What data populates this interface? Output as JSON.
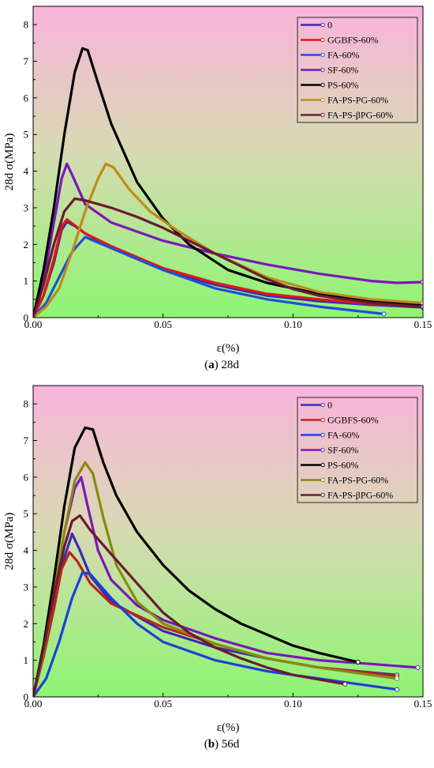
{
  "chart_data": [
    {
      "type": "line",
      "xlabel": "ε(%)",
      "ylabel": "28d σ(MPa)",
      "caption": {
        "label": "a",
        "text": " 28d"
      },
      "xlim": [
        0,
        0.15
      ],
      "ylim": [
        0,
        8.5
      ],
      "x_ticks": [
        "0.00",
        "0.05",
        "0.10",
        "0.15"
      ],
      "y_ticks": [
        "0",
        "1",
        "2",
        "3",
        "4",
        "5",
        "6",
        "7",
        "8"
      ],
      "background": {
        "top": "#f9b4dc",
        "bottom": "#8ef572"
      },
      "legend_position": "top-right",
      "series": [
        {
          "name": "0",
          "color": "#3b2bb0",
          "points": [
            [
              0,
              0
            ],
            [
              0.004,
              0.6
            ],
            [
              0.008,
              1.5
            ],
            [
              0.011,
              2.4
            ],
            [
              0.013,
              2.62
            ],
            [
              0.016,
              2.5
            ],
            [
              0.02,
              2.3
            ],
            [
              0.03,
              1.9
            ],
            [
              0.05,
              1.3
            ],
            [
              0.07,
              0.9
            ],
            [
              0.09,
              0.6
            ],
            [
              0.11,
              0.45
            ],
            [
              0.13,
              0.35
            ],
            [
              0.15,
              0.28
            ]
          ]
        },
        {
          "name": "GGBFS-60%",
          "color": "#e01818",
          "points": [
            [
              0,
              0
            ],
            [
              0.004,
              0.6
            ],
            [
              0.008,
              1.6
            ],
            [
              0.011,
              2.5
            ],
            [
              0.013,
              2.68
            ],
            [
              0.016,
              2.52
            ],
            [
              0.02,
              2.3
            ],
            [
              0.03,
              1.95
            ],
            [
              0.05,
              1.35
            ],
            [
              0.07,
              0.95
            ],
            [
              0.09,
              0.65
            ],
            [
              0.11,
              0.5
            ],
            [
              0.13,
              0.38
            ],
            [
              0.15,
              0.3
            ]
          ]
        },
        {
          "name": "FA-60%",
          "color": "#1f4fd8",
          "points": [
            [
              0,
              0
            ],
            [
              0.005,
              0.4
            ],
            [
              0.01,
              1.1
            ],
            [
              0.015,
              1.8
            ],
            [
              0.02,
              2.2
            ],
            [
              0.025,
              2.05
            ],
            [
              0.035,
              1.75
            ],
            [
              0.05,
              1.3
            ],
            [
              0.07,
              0.8
            ],
            [
              0.09,
              0.5
            ],
            [
              0.11,
              0.3
            ],
            [
              0.135,
              0.1
            ]
          ]
        },
        {
          "name": "SF-60%",
          "color": "#7a18b8",
          "points": [
            [
              0,
              0
            ],
            [
              0.004,
              1.0
            ],
            [
              0.008,
              2.6
            ],
            [
              0.011,
              3.8
            ],
            [
              0.013,
              4.2
            ],
            [
              0.015,
              3.9
            ],
            [
              0.02,
              3.1
            ],
            [
              0.03,
              2.6
            ],
            [
              0.05,
              2.1
            ],
            [
              0.07,
              1.75
            ],
            [
              0.09,
              1.45
            ],
            [
              0.11,
              1.2
            ],
            [
              0.13,
              1.0
            ],
            [
              0.14,
              0.95
            ],
            [
              0.15,
              0.97
            ]
          ]
        },
        {
          "name": "PS-60%",
          "color": "#000000",
          "points": [
            [
              0,
              0
            ],
            [
              0.004,
              1.3
            ],
            [
              0.008,
              3.0
            ],
            [
              0.012,
              5.0
            ],
            [
              0.016,
              6.7
            ],
            [
              0.019,
              7.35
            ],
            [
              0.021,
              7.3
            ],
            [
              0.025,
              6.4
            ],
            [
              0.03,
              5.3
            ],
            [
              0.04,
              3.7
            ],
            [
              0.05,
              2.7
            ],
            [
              0.06,
              2.0
            ],
            [
              0.075,
              1.3
            ],
            [
              0.09,
              0.95
            ],
            [
              0.11,
              0.65
            ],
            [
              0.13,
              0.45
            ],
            [
              0.15,
              0.35
            ]
          ]
        },
        {
          "name": "FA-PS-PG-60%",
          "color": "#c08a1a",
          "points": [
            [
              0,
              0
            ],
            [
              0.005,
              0.3
            ],
            [
              0.01,
              0.8
            ],
            [
              0.015,
              1.8
            ],
            [
              0.02,
              2.9
            ],
            [
              0.025,
              3.8
            ],
            [
              0.028,
              4.2
            ],
            [
              0.031,
              4.1
            ],
            [
              0.037,
              3.5
            ],
            [
              0.045,
              2.9
            ],
            [
              0.055,
              2.4
            ],
            [
              0.07,
              1.75
            ],
            [
              0.09,
              1.1
            ],
            [
              0.11,
              0.7
            ],
            [
              0.13,
              0.5
            ],
            [
              0.15,
              0.4
            ]
          ]
        },
        {
          "name": "FA-PS-βPG-60%",
          "color": "#6b1a34",
          "points": [
            [
              0,
              0
            ],
            [
              0.004,
              0.9
            ],
            [
              0.008,
              2.0
            ],
            [
              0.012,
              2.9
            ],
            [
              0.016,
              3.25
            ],
            [
              0.02,
              3.2
            ],
            [
              0.03,
              3.0
            ],
            [
              0.04,
              2.75
            ],
            [
              0.05,
              2.45
            ],
            [
              0.06,
              2.1
            ],
            [
              0.07,
              1.75
            ],
            [
              0.08,
              1.4
            ],
            [
              0.09,
              1.05
            ],
            [
              0.1,
              0.78
            ],
            [
              0.11,
              0.6
            ],
            [
              0.13,
              0.4
            ],
            [
              0.15,
              0.3
            ]
          ]
        }
      ]
    },
    {
      "type": "line",
      "xlabel": "ε(%)",
      "ylabel": "28d σ(MPa)",
      "caption": {
        "label": "b",
        "text": " 56d"
      },
      "xlim": [
        0,
        0.15
      ],
      "ylim": [
        0,
        8.5
      ],
      "x_ticks": [
        "0.00",
        "0.05",
        "0.10",
        "0.15"
      ],
      "y_ticks": [
        "0",
        "1",
        "2",
        "3",
        "4",
        "5",
        "6",
        "7",
        "8"
      ],
      "background": {
        "top": "#f9b4dc",
        "bottom": "#8ef572"
      },
      "legend_position": "top-right",
      "series": [
        {
          "name": "0",
          "color": "#3b2bb0",
          "points": [
            [
              0,
              0
            ],
            [
              0.004,
              1.2
            ],
            [
              0.008,
              2.6
            ],
            [
              0.012,
              3.8
            ],
            [
              0.015,
              4.45
            ],
            [
              0.018,
              4.0
            ],
            [
              0.022,
              3.3
            ],
            [
              0.03,
              2.6
            ],
            [
              0.05,
              1.8
            ],
            [
              0.07,
              1.35
            ],
            [
              0.09,
              1.05
            ],
            [
              0.11,
              0.8
            ],
            [
              0.125,
              0.7
            ],
            [
              0.14,
              0.6
            ]
          ]
        },
        {
          "name": "GGBFS-60%",
          "color": "#b8251a",
          "points": [
            [
              0,
              0
            ],
            [
              0.004,
              1.1
            ],
            [
              0.008,
              2.4
            ],
            [
              0.011,
              3.5
            ],
            [
              0.014,
              3.95
            ],
            [
              0.017,
              3.7
            ],
            [
              0.022,
              3.1
            ],
            [
              0.03,
              2.55
            ],
            [
              0.05,
              1.9
            ],
            [
              0.07,
              1.45
            ],
            [
              0.09,
              1.05
            ],
            [
              0.11,
              0.8
            ],
            [
              0.13,
              0.65
            ],
            [
              0.14,
              0.55
            ]
          ]
        },
        {
          "name": "FA-60%",
          "color": "#1f3fd8",
          "points": [
            [
              0,
              0
            ],
            [
              0.005,
              0.5
            ],
            [
              0.01,
              1.5
            ],
            [
              0.015,
              2.7
            ],
            [
              0.019,
              3.4
            ],
            [
              0.022,
              3.35
            ],
            [
              0.03,
              2.7
            ],
            [
              0.04,
              2.0
            ],
            [
              0.05,
              1.5
            ],
            [
              0.07,
              1.0
            ],
            [
              0.09,
              0.7
            ],
            [
              0.11,
              0.5
            ],
            [
              0.125,
              0.35
            ],
            [
              0.14,
              0.2
            ]
          ]
        },
        {
          "name": "SF-60%",
          "color": "#7a18b8",
          "points": [
            [
              0,
              0
            ],
            [
              0.004,
              1.3
            ],
            [
              0.008,
              2.8
            ],
            [
              0.012,
              4.5
            ],
            [
              0.016,
              5.7
            ],
            [
              0.0185,
              6.0
            ],
            [
              0.021,
              5.2
            ],
            [
              0.025,
              4.0
            ],
            [
              0.03,
              3.2
            ],
            [
              0.04,
              2.5
            ],
            [
              0.05,
              2.1
            ],
            [
              0.07,
              1.6
            ],
            [
              0.09,
              1.2
            ],
            [
              0.11,
              1.0
            ],
            [
              0.13,
              0.9
            ],
            [
              0.148,
              0.8
            ]
          ]
        },
        {
          "name": "PS-60%",
          "color": "#000000",
          "points": [
            [
              0,
              0
            ],
            [
              0.004,
              1.4
            ],
            [
              0.008,
              3.2
            ],
            [
              0.012,
              5.2
            ],
            [
              0.016,
              6.8
            ],
            [
              0.02,
              7.35
            ],
            [
              0.023,
              7.3
            ],
            [
              0.027,
              6.4
            ],
            [
              0.032,
              5.5
            ],
            [
              0.04,
              4.5
            ],
            [
              0.05,
              3.6
            ],
            [
              0.06,
              2.9
            ],
            [
              0.07,
              2.4
            ],
            [
              0.08,
              2.0
            ],
            [
              0.09,
              1.7
            ],
            [
              0.1,
              1.4
            ],
            [
              0.11,
              1.2
            ],
            [
              0.125,
              0.95
            ]
          ]
        },
        {
          "name": "FA-PS-PG-60%",
          "color": "#8a8a10",
          "points": [
            [
              0,
              0
            ],
            [
              0.004,
              1.2
            ],
            [
              0.008,
              2.8
            ],
            [
              0.012,
              4.5
            ],
            [
              0.016,
              5.9
            ],
            [
              0.02,
              6.4
            ],
            [
              0.023,
              6.1
            ],
            [
              0.027,
              4.9
            ],
            [
              0.032,
              3.6
            ],
            [
              0.04,
              2.6
            ],
            [
              0.05,
              2.0
            ],
            [
              0.07,
              1.45
            ],
            [
              0.09,
              1.05
            ],
            [
              0.11,
              0.8
            ],
            [
              0.125,
              0.65
            ],
            [
              0.14,
              0.5
            ]
          ]
        },
        {
          "name": "FA-PS-βPG-60%",
          "color": "#6b1a34",
          "points": [
            [
              0,
              0
            ],
            [
              0.004,
              1.3
            ],
            [
              0.008,
              2.8
            ],
            [
              0.012,
              4.1
            ],
            [
              0.015,
              4.8
            ],
            [
              0.018,
              4.95
            ],
            [
              0.022,
              4.55
            ],
            [
              0.03,
              3.9
            ],
            [
              0.04,
              3.1
            ],
            [
              0.05,
              2.3
            ],
            [
              0.06,
              1.75
            ],
            [
              0.07,
              1.35
            ],
            [
              0.08,
              1.05
            ],
            [
              0.09,
              0.8
            ],
            [
              0.1,
              0.6
            ],
            [
              0.12,
              0.35
            ]
          ]
        }
      ]
    }
  ]
}
